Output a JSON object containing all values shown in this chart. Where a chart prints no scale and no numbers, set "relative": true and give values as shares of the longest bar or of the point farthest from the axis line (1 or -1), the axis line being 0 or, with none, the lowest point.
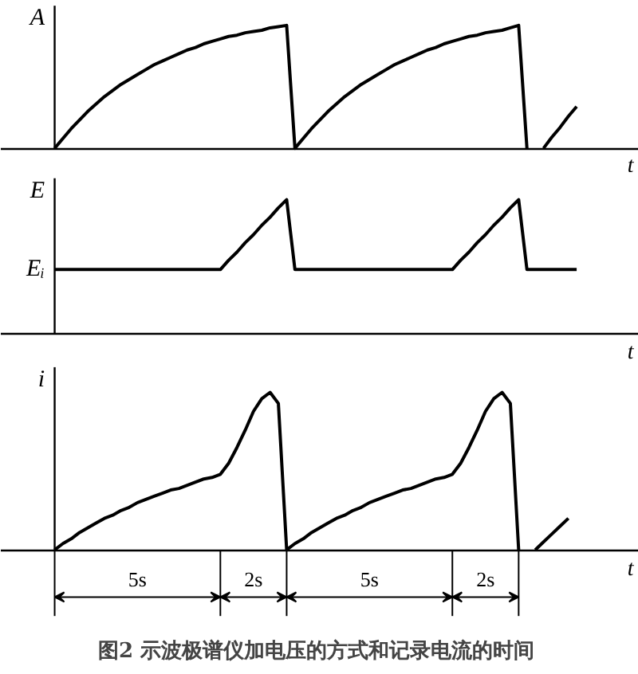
{
  "chart_data": [
    {
      "type": "line",
      "relative": true,
      "ylabel": "A",
      "xlabel": "t",
      "categories": [
        null,
        null,
        null,
        null,
        null,
        null,
        null,
        null,
        null,
        null,
        null,
        null,
        null,
        null,
        null,
        null,
        null,
        null,
        null,
        null,
        null,
        null,
        null,
        null,
        null,
        null,
        null,
        null,
        null,
        null,
        null,
        null,
        null,
        null,
        null,
        null,
        null,
        null,
        null,
        null,
        null,
        null,
        null,
        null,
        null,
        null,
        null,
        null,
        null,
        null,
        null,
        null,
        null,
        null,
        null,
        null,
        null,
        null,
        null,
        null,
        null,
        null,
        null,
        null,
        null,
        null,
        null,
        null,
        null
      ],
      "series": [
        {
          "color": "#000000",
          "values": [
            0,
            0.08,
            0.16,
            0.23,
            0.3,
            0.36,
            0.42,
            0.47,
            0.52,
            0.56,
            0.6,
            0.64,
            0.68,
            0.71,
            0.74,
            0.77,
            0.8,
            0.82,
            0.85,
            0.87,
            0.89,
            0.91,
            0.92,
            0.94,
            0.95,
            0.96,
            0.98,
            0.99,
            1,
            0,
            0.08,
            0.16,
            0.23,
            0.3,
            0.36,
            0.42,
            0.47,
            0.52,
            0.56,
            0.6,
            0.64,
            0.68,
            0.71,
            0.74,
            0.77,
            0.8,
            0.82,
            0.85,
            0.87,
            0.89,
            0.91,
            0.92,
            0.94,
            0.95,
            0.96,
            0.98,
            1,
            0,
            null,
            0,
            0.09,
            0.17,
            0.26,
            0.34,
            null,
            null,
            null,
            null,
            null
          ]
        }
      ]
    },
    {
      "type": "line",
      "relative": true,
      "ylabel": "E",
      "xlabel": "t",
      "categories": [
        null,
        null,
        null,
        null,
        null,
        null,
        null,
        null,
        null,
        null,
        null,
        null,
        null,
        null,
        null,
        null,
        null,
        null,
        null,
        null,
        null,
        null,
        null,
        null,
        null,
        null,
        null,
        null,
        null,
        null,
        null,
        null,
        null,
        null,
        null,
        null,
        null,
        null,
        null,
        null,
        null,
        null,
        null,
        null,
        null,
        null,
        null,
        null,
        null,
        null,
        null,
        null,
        null,
        null,
        null,
        null,
        null,
        null,
        null,
        null,
        null,
        null,
        null,
        null,
        null,
        null,
        null,
        null,
        null
      ],
      "annotations": [
        "Eᵢ"
      ],
      "series": [
        {
          "color": "#000000",
          "values": [
            0.48,
            0.48,
            0.48,
            0.48,
            0.48,
            0.48,
            0.48,
            0.48,
            0.48,
            0.48,
            0.48,
            0.48,
            0.48,
            0.48,
            0.48,
            0.48,
            0.48,
            0.48,
            0.48,
            0.48,
            0.48,
            0.55,
            0.61,
            0.68,
            0.74,
            0.81,
            0.87,
            0.94,
            1,
            0.48,
            0.48,
            0.48,
            0.48,
            0.48,
            0.48,
            0.48,
            0.48,
            0.48,
            0.48,
            0.48,
            0.48,
            0.48,
            0.48,
            0.48,
            0.48,
            0.48,
            0.48,
            0.48,
            0.48,
            0.55,
            0.61,
            0.68,
            0.74,
            0.81,
            0.87,
            0.94,
            1,
            0.48,
            0.48,
            0.48,
            0.48,
            0.48,
            0.48,
            0.48,
            null,
            null,
            null,
            null,
            null
          ]
        }
      ]
    },
    {
      "type": "line",
      "relative": true,
      "ylabel": "i",
      "xlabel": "t",
      "categories": [
        null,
        null,
        null,
        null,
        null,
        null,
        null,
        null,
        null,
        null,
        null,
        null,
        null,
        null,
        null,
        null,
        null,
        null,
        null,
        null,
        null,
        null,
        null,
        null,
        null,
        null,
        null,
        null,
        null,
        null,
        null,
        null,
        null,
        null,
        null,
        null,
        null,
        null,
        null,
        null,
        null,
        null,
        null,
        null,
        null,
        null,
        null,
        null,
        null,
        null,
        null,
        null,
        null,
        null,
        null,
        null,
        null,
        null,
        null,
        null,
        null,
        null,
        null,
        null,
        null,
        null,
        null,
        null,
        null
      ],
      "annotations": [
        "5s",
        "2s",
        "5s",
        "2s"
      ],
      "title": "图2  示波极谱仪加电压的方式和记录电流的时间",
      "series": [
        {
          "color": "#000000",
          "values": [
            0,
            0.04,
            0.07,
            0.11,
            0.14,
            0.17,
            0.2,
            0.22,
            0.25,
            0.27,
            0.3,
            0.32,
            0.34,
            0.36,
            0.38,
            0.39,
            0.41,
            0.43,
            0.45,
            0.46,
            0.48,
            0.55,
            0.65,
            0.76,
            0.88,
            0.96,
            1,
            0.93,
            0,
            0.04,
            0.07,
            0.11,
            0.14,
            0.17,
            0.2,
            0.22,
            0.25,
            0.27,
            0.3,
            0.32,
            0.34,
            0.36,
            0.38,
            0.39,
            0.41,
            0.43,
            0.45,
            0.46,
            0.48,
            0.55,
            0.65,
            0.76,
            0.88,
            0.96,
            1,
            0.93,
            0,
            null,
            0,
            0.05,
            0.1,
            0.15,
            0.2,
            null,
            null,
            null,
            null,
            null,
            null
          ]
        }
      ]
    }
  ]
}
